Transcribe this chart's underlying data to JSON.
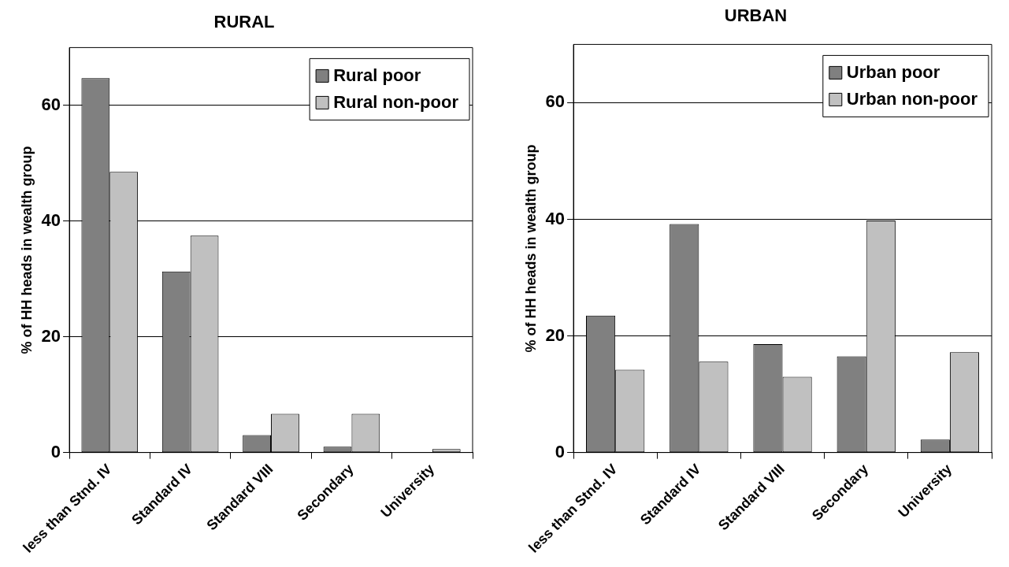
{
  "chart_data": [
    {
      "type": "bar",
      "title": "RURAL",
      "ylabel": "% of HH heads in wealth group",
      "categories": [
        "less than Stnd. IV",
        "Standard IV",
        "Standard VIII",
        "Secondary",
        "University"
      ],
      "series": [
        {
          "name": "Rural poor",
          "color": "#808080",
          "values": [
            64.7,
            31.3,
            3,
            1,
            0
          ]
        },
        {
          "name": "Rural non-poor",
          "color": "#c0c0c0",
          "values": [
            48.5,
            37.5,
            6.7,
            6.7,
            0.6
          ]
        }
      ],
      "ylim": [
        0,
        70
      ],
      "yticks": [
        0,
        20,
        40,
        60
      ],
      "grid": "y",
      "legend": "top right"
    },
    {
      "type": "bar",
      "title": "URBAN",
      "ylabel": "% of HH heads in wealth group",
      "categories": [
        "less than Stnd. IV",
        "Standard IV",
        "Standard VIII",
        "Secondary",
        "University"
      ],
      "series": [
        {
          "name": "Urban poor",
          "color": "#808080",
          "values": [
            23.5,
            39.2,
            18.6,
            16.5,
            2.2
          ]
        },
        {
          "name": "Urban non-poor",
          "color": "#c0c0c0",
          "values": [
            14.2,
            15.6,
            13,
            39.8,
            17.2
          ]
        }
      ],
      "ylim": [
        0,
        70
      ],
      "yticks": [
        0,
        20,
        40,
        60
      ],
      "grid": "y",
      "legend": "top right"
    }
  ]
}
